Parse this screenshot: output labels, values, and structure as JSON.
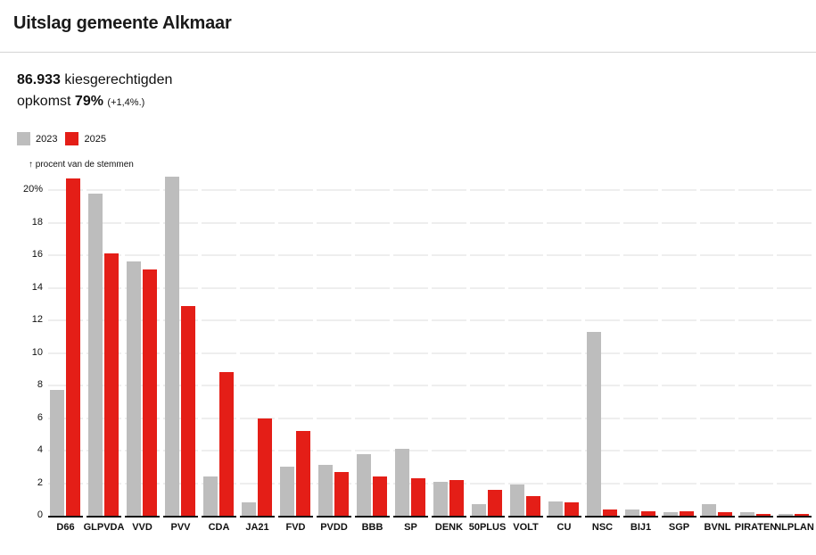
{
  "header": {
    "title": "Uitslag gemeente Alkmaar"
  },
  "stats": {
    "electorate_value": "86.933",
    "electorate_label": "kiesgerechtigden",
    "turnout_label": "opkomst",
    "turnout_value": "79%",
    "turnout_change": "(+1,4%.)"
  },
  "legend": [
    {
      "label": "2023",
      "color": "#bdbdbd"
    },
    {
      "label": "2025",
      "color": "#e41e17"
    }
  ],
  "colors": {
    "s2023": "#bdbdbd",
    "s2025": "#e41e17",
    "grid": "#eeeeee"
  },
  "chart_data": {
    "type": "bar",
    "title": "Uitslag gemeente Alkmaar",
    "xlabel": "",
    "ylabel": "↑ procent van de stemmen",
    "ylim": [
      0,
      21
    ],
    "yticks": [
      "0",
      "2",
      "4",
      "6",
      "8",
      "10",
      "12",
      "14",
      "16",
      "18",
      "20%"
    ],
    "grid": true,
    "legend_position": "top-left",
    "categories": [
      "D66",
      "GLPVDA",
      "VVD",
      "PVV",
      "CDA",
      "JA21",
      "FVD",
      "PVDD",
      "BBB",
      "SP",
      "DENK",
      "50PLUS",
      "VOLT",
      "CU",
      "NSC",
      "BIJ1",
      "SGP",
      "BVNL",
      "PIRATEN",
      "NLPLAN"
    ],
    "series": [
      {
        "name": "2023",
        "values": [
          7.7,
          19.8,
          15.6,
          20.8,
          2.4,
          0.8,
          3.0,
          3.1,
          3.8,
          4.1,
          2.1,
          0.7,
          1.9,
          0.9,
          11.3,
          0.4,
          0.2,
          0.7,
          0.2,
          0.1
        ]
      },
      {
        "name": "2025",
        "values": [
          20.7,
          16.1,
          15.1,
          12.9,
          8.8,
          6.0,
          5.2,
          2.7,
          2.4,
          2.3,
          2.2,
          1.6,
          1.2,
          0.8,
          0.4,
          0.3,
          0.3,
          0.2,
          0.1,
          0.1
        ]
      }
    ]
  }
}
